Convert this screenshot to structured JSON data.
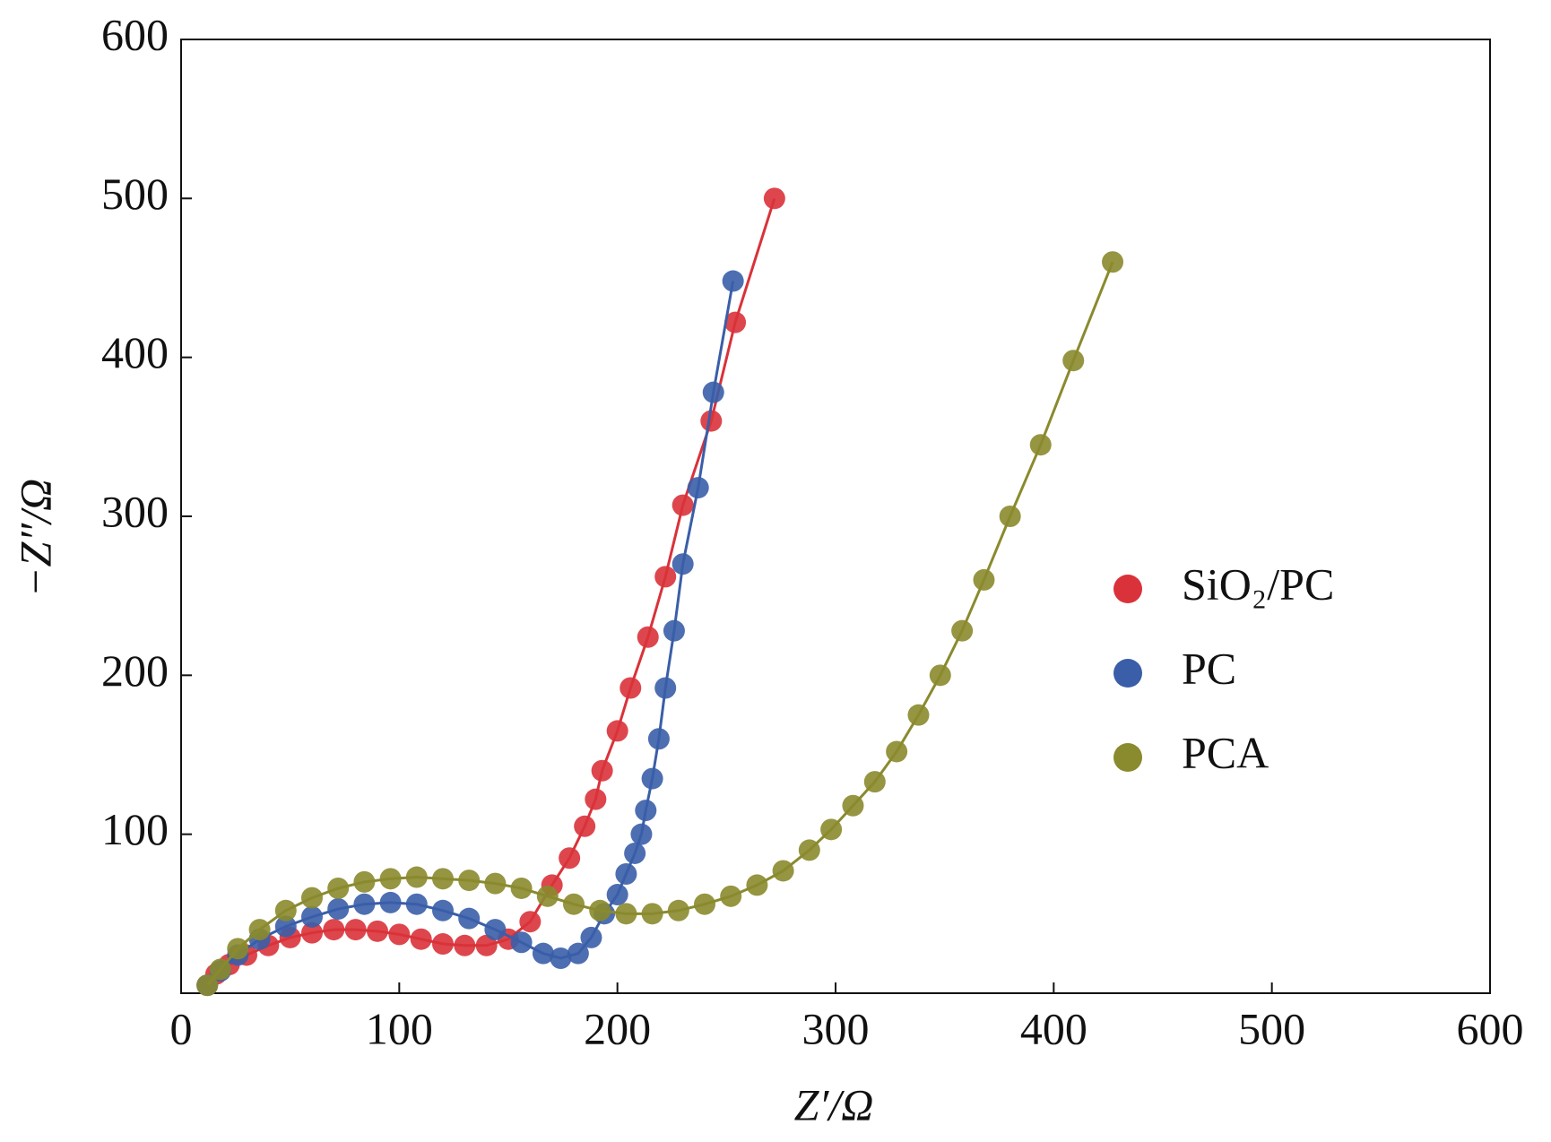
{
  "chart_data": {
    "type": "line",
    "x_label": "Z′/Ω",
    "y_label": "−Z″/Ω",
    "xlim": [
      0,
      600
    ],
    "xticks": [
      0,
      100,
      200,
      300,
      400,
      500,
      600
    ],
    "ylim": [
      0,
      600
    ],
    "yticks": [
      100,
      200,
      300,
      400,
      500,
      600
    ],
    "legend": "right",
    "series": [
      {
        "name": "SiO₂/PC",
        "color": "#d9323a",
        "x": [
          12,
          16,
          22,
          30,
          40,
          50,
          60,
          70,
          80,
          90,
          100,
          110,
          120,
          130,
          140,
          150,
          160,
          170,
          178,
          185,
          190,
          193,
          200,
          206,
          214,
          222,
          230,
          243,
          254,
          272
        ],
        "values": [
          5,
          12,
          18,
          24,
          30,
          35,
          38,
          40,
          40,
          39,
          37,
          34,
          31,
          30,
          30,
          34,
          45,
          68,
          85,
          105,
          122,
          140,
          165,
          192,
          224,
          262,
          307,
          360,
          422,
          500
        ]
      },
      {
        "name": "PC",
        "color": "#3a5ea8",
        "x": [
          12,
          18,
          26,
          36,
          48,
          60,
          72,
          84,
          96,
          108,
          120,
          132,
          144,
          156,
          166,
          174,
          182,
          188,
          194,
          200,
          204,
          208,
          211,
          213,
          216,
          219,
          222,
          226,
          230,
          237,
          244,
          253
        ],
        "values": [
          5,
          14,
          24,
          34,
          42,
          48,
          53,
          56,
          57,
          56,
          52,
          47,
          40,
          32,
          25,
          22,
          25,
          35,
          50,
          62,
          75,
          88,
          100,
          115,
          135,
          160,
          192,
          228,
          270,
          318,
          378,
          448
        ]
      },
      {
        "name": "PCA",
        "color": "#8a8a2e",
        "x": [
          12,
          18,
          26,
          36,
          48,
          60,
          72,
          84,
          96,
          108,
          120,
          132,
          144,
          156,
          168,
          180,
          192,
          204,
          216,
          228,
          240,
          252,
          264,
          276,
          288,
          298,
          308,
          318,
          328,
          338,
          348,
          358,
          368,
          380,
          394,
          409,
          427
        ],
        "values": [
          5,
          15,
          28,
          40,
          52,
          60,
          66,
          70,
          72,
          73,
          72,
          71,
          69,
          66,
          61,
          56,
          52,
          50,
          50,
          52,
          56,
          61,
          68,
          77,
          90,
          103,
          118,
          133,
          152,
          175,
          200,
          228,
          260,
          300,
          345,
          398,
          460
        ]
      }
    ]
  }
}
